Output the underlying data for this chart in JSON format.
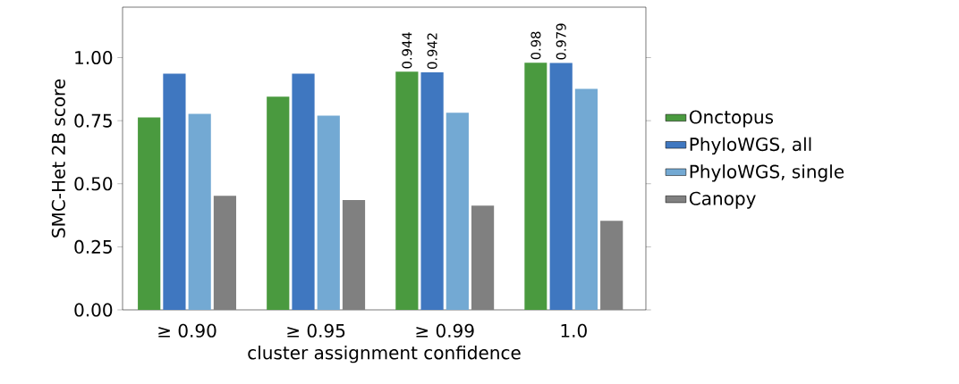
{
  "chart_data": {
    "type": "bar",
    "xlabel": "cluster assignment confidence",
    "ylabel": "SMC-Het 2B score",
    "categories": [
      "≥ 0.90",
      "≥ 0.95",
      "≥ 0.99",
      "1.0"
    ],
    "series": [
      {
        "name": "Onctopus",
        "color": "#4a9a3f",
        "values": [
          0.763,
          0.845,
          0.944,
          0.98
        ],
        "value_labels": [
          null,
          null,
          "0.944",
          "0.98"
        ]
      },
      {
        "name": "PhyloWGS, all",
        "color": "#3f77c0",
        "values": [
          0.936,
          0.936,
          0.942,
          0.979
        ],
        "value_labels": [
          null,
          null,
          "0.942",
          "0.979"
        ]
      },
      {
        "name": "PhyloWGS, single",
        "color": "#73a9d3",
        "values": [
          0.777,
          0.77,
          0.781,
          0.876
        ]
      },
      {
        "name": "Canopy",
        "color": "#808080",
        "values": [
          0.452,
          0.435,
          0.413,
          0.353
        ]
      }
    ],
    "ylim": [
      0,
      1.2
    ],
    "yticks": [
      {
        "value": 0,
        "label": "0.00"
      },
      {
        "value": 0.25,
        "label": "0.25"
      },
      {
        "value": 0.5,
        "label": "0.50"
      },
      {
        "value": 0.75,
        "label": "0.75"
      },
      {
        "value": 1,
        "label": "1.00"
      }
    ],
    "legend": "right"
  }
}
